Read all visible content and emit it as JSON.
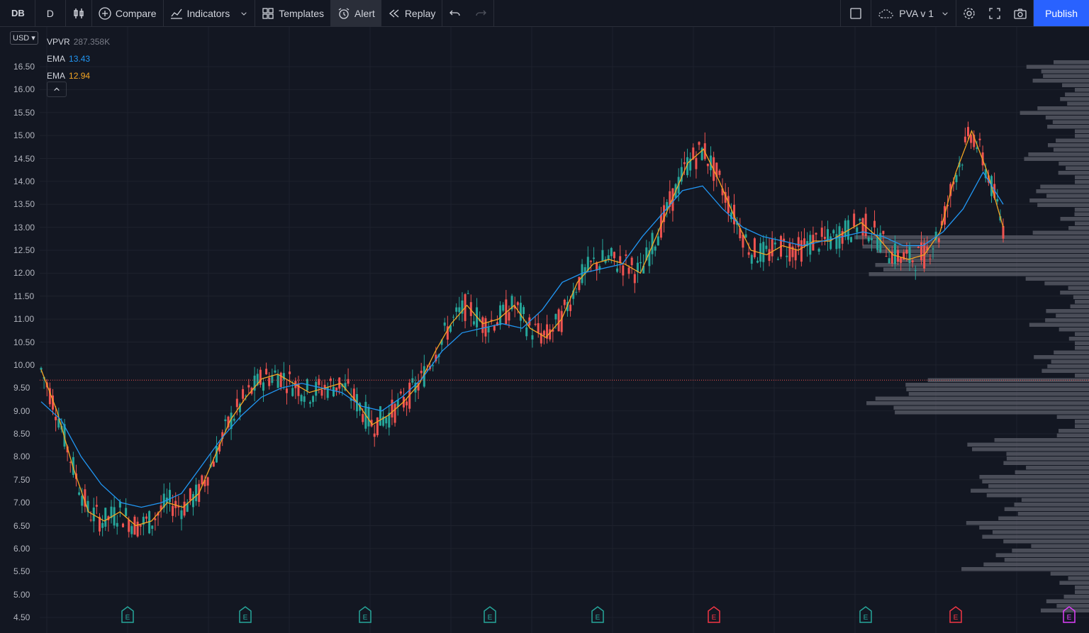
{
  "toolbar": {
    "symbol": "DB",
    "interval": "D",
    "compare_label": "Compare",
    "indicators_label": "Indicators",
    "templates_label": "Templates",
    "alert_label": "Alert",
    "replay_label": "Replay",
    "layout_name": "PVA v 1",
    "publish_label": "Publish"
  },
  "currency": "USD",
  "legend": {
    "vpvr": {
      "name": "VPVR",
      "value": "287.358K"
    },
    "ema_fast": {
      "name": "EMA",
      "value": "13.43",
      "color": "#2196f3"
    },
    "ema_slow": {
      "name": "EMA",
      "value": "12.94",
      "color": "#f5a623"
    }
  },
  "price_axis": [
    "16.50",
    "16.00",
    "15.50",
    "15.00",
    "14.50",
    "14.00",
    "13.50",
    "13.00",
    "12.50",
    "12.00",
    "11.50",
    "11.00",
    "10.50",
    "10.00",
    "9.50",
    "9.00",
    "8.50",
    "8.00",
    "7.50",
    "7.00",
    "6.50",
    "6.00",
    "5.50",
    "5.00",
    "4.50"
  ],
  "earnings_markers": [
    {
      "label": "E",
      "color": "#26a69a"
    },
    {
      "label": "E",
      "color": "#26a69a"
    },
    {
      "label": "E",
      "color": "#26a69a"
    },
    {
      "label": "E",
      "color": "#26a69a"
    },
    {
      "label": "E",
      "color": "#26a69a"
    },
    {
      "label": "E",
      "color": "#f23645"
    },
    {
      "label": "E",
      "color": "#26a69a"
    },
    {
      "label": "E",
      "color": "#f23645"
    },
    {
      "label": "E",
      "color": "#e040fb"
    }
  ],
  "chart_data": {
    "type": "line",
    "ylim": [
      4.5,
      16.5
    ],
    "current_price": 9.67,
    "series": [
      {
        "color": "#f5a623",
        "values": [
          9.9,
          9.0,
          7.8,
          6.8,
          6.6,
          6.8,
          6.5,
          6.6,
          7.0,
          6.9,
          7.2,
          8.0,
          8.8,
          9.3,
          9.7,
          9.8,
          9.6,
          9.4,
          9.5,
          9.6,
          9.2,
          8.7,
          8.9,
          9.2,
          9.6,
          10.3,
          10.9,
          11.3,
          10.9,
          11.0,
          11.3,
          10.8,
          10.6,
          11.0,
          11.8,
          12.2,
          12.3,
          12.2,
          12.0,
          12.8,
          13.6,
          14.4,
          14.7,
          14.0,
          13.2,
          12.5,
          12.4,
          12.6,
          12.5,
          12.7,
          12.7,
          12.9,
          13.1,
          12.8,
          12.4,
          12.3,
          12.4,
          12.9,
          14.2,
          15.1,
          14.2,
          13.0
        ]
      },
      {
        "color": "#2196f3",
        "values": [
          9.2,
          8.8,
          8.0,
          7.4,
          7.0,
          6.9,
          7.0,
          7.2,
          7.8,
          8.4,
          8.9,
          9.3,
          9.5,
          9.6,
          9.5,
          9.4,
          9.1,
          9.0,
          9.3,
          9.7,
          10.3,
          10.7,
          10.8,
          10.9,
          10.8,
          11.2,
          11.8,
          12.0,
          12.1,
          12.2,
          12.8,
          13.3,
          13.8,
          13.9,
          13.4,
          13.0,
          12.8,
          12.7,
          12.6,
          12.7,
          12.8,
          12.9,
          12.8,
          12.6,
          12.6,
          12.9,
          13.4,
          14.2,
          13.5
        ]
      }
    ]
  }
}
